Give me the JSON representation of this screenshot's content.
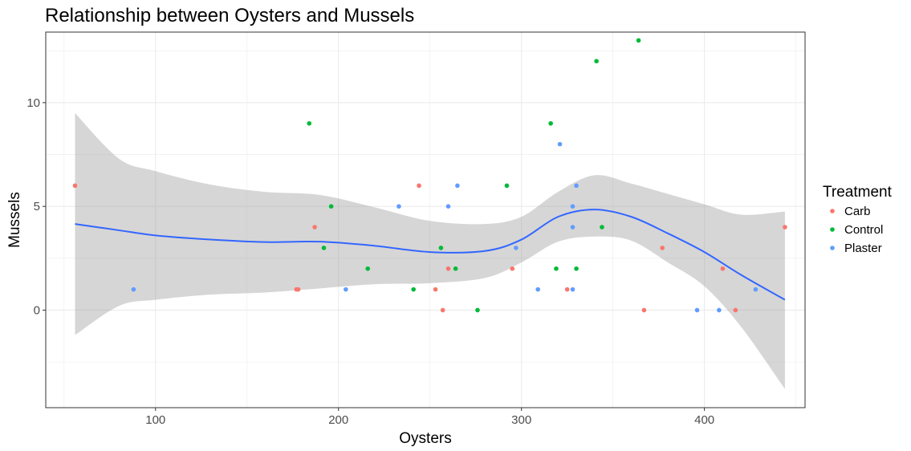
{
  "chart_data": {
    "type": "scatter",
    "title": "Relationship between Oysters and Mussels",
    "xlabel": "Oysters",
    "ylabel": "Mussels",
    "xlim": [
      40,
      455
    ],
    "ylim": [
      -4.7,
      13.4
    ],
    "xticks": [
      100,
      200,
      300,
      400
    ],
    "xtick_labels": [
      "100",
      "200",
      "300",
      "400"
    ],
    "yticks": [
      0,
      5,
      10
    ],
    "ytick_labels": [
      "0",
      "5",
      "10"
    ],
    "grid": true,
    "legend": {
      "title": "Treatment",
      "position": "right"
    },
    "series": [
      {
        "name": "Carb",
        "color": "#F8766D",
        "points": [
          [
            56,
            6
          ],
          [
            177,
            1
          ],
          [
            178,
            1
          ],
          [
            187,
            4
          ],
          [
            244,
            6
          ],
          [
            253,
            1
          ],
          [
            257,
            0
          ],
          [
            260,
            2
          ],
          [
            295,
            2
          ],
          [
            325,
            1
          ],
          [
            367,
            0
          ],
          [
            377,
            3
          ],
          [
            410,
            2
          ],
          [
            417,
            0
          ],
          [
            444,
            4
          ]
        ]
      },
      {
        "name": "Control",
        "color": "#00BA38",
        "points": [
          [
            184,
            9
          ],
          [
            192,
            3
          ],
          [
            196,
            5
          ],
          [
            216,
            2
          ],
          [
            241,
            1
          ],
          [
            256,
            3
          ],
          [
            264,
            2
          ],
          [
            276,
            0
          ],
          [
            292,
            6
          ],
          [
            316,
            9
          ],
          [
            319,
            2
          ],
          [
            330,
            2
          ],
          [
            341,
            12
          ],
          [
            344,
            4
          ],
          [
            364,
            13
          ]
        ]
      },
      {
        "name": "Plaster",
        "color": "#619CFF",
        "points": [
          [
            88,
            1
          ],
          [
            204,
            1
          ],
          [
            233,
            5
          ],
          [
            260,
            5
          ],
          [
            265,
            6
          ],
          [
            297,
            3
          ],
          [
            309,
            1
          ],
          [
            321,
            8
          ],
          [
            328,
            1
          ],
          [
            328,
            4
          ],
          [
            328,
            5
          ],
          [
            330,
            6
          ],
          [
            396,
            0
          ],
          [
            408,
            0
          ],
          [
            428,
            1
          ]
        ]
      }
    ],
    "smooth": {
      "method": "loess",
      "color": "#3366FF",
      "band_color": "#999999",
      "x": [
        56,
        80,
        100,
        130,
        160,
        190,
        220,
        250,
        280,
        300,
        320,
        340,
        360,
        380,
        400,
        420,
        444
      ],
      "y": [
        4.15,
        3.85,
        3.6,
        3.4,
        3.28,
        3.3,
        3.1,
        2.8,
        2.85,
        3.4,
        4.5,
        4.85,
        4.5,
        3.7,
        2.8,
        1.7,
        0.5
      ],
      "ymin": [
        -1.2,
        0.2,
        0.5,
        0.75,
        0.85,
        1.05,
        1.25,
        1.3,
        1.55,
        2.3,
        3.3,
        3.55,
        3.35,
        2.3,
        1.15,
        -0.8,
        -3.8
      ],
      "ymax": [
        9.5,
        7.3,
        6.7,
        6.05,
        5.7,
        5.55,
        4.95,
        4.3,
        4.15,
        4.5,
        5.7,
        6.5,
        6.1,
        5.6,
        5.1,
        4.6,
        4.75
      ]
    }
  }
}
